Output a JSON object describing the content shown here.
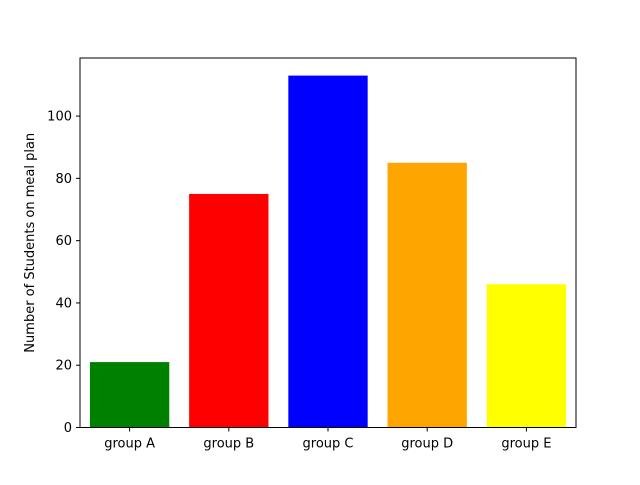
{
  "chart_data": {
    "type": "bar",
    "categories": [
      "group A",
      "group B",
      "group C",
      "group D",
      "group E"
    ],
    "values": [
      21,
      75,
      113,
      85,
      46
    ],
    "colors": [
      "#008000",
      "#ff0000",
      "#0000ff",
      "#ffa500",
      "#ffff00"
    ],
    "title": "",
    "xlabel": "",
    "ylabel": "Number of Students on meal plan",
    "ylim": [
      0,
      118.65
    ],
    "yticks": [
      0,
      20,
      40,
      60,
      80,
      100
    ],
    "grid": false,
    "legend": "none"
  }
}
